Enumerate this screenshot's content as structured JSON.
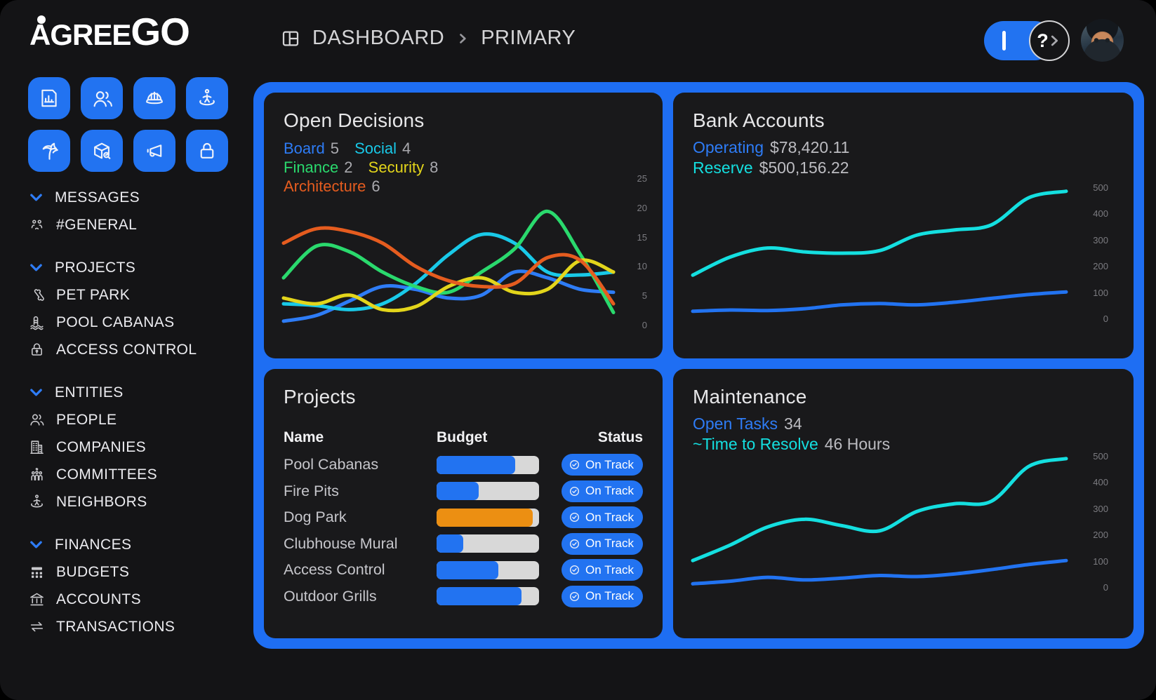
{
  "header": {
    "breadcrumb": {
      "icon": "dashboard-layout-icon",
      "items": [
        "DASHBOARD",
        "PRIMARY"
      ]
    },
    "help_glyph": "?"
  },
  "sidebar": {
    "logo_text": "AGREE",
    "logo_text_accent": "GO",
    "quick_buttons": [
      {
        "icon": "report-chart-icon"
      },
      {
        "icon": "users-icon"
      },
      {
        "icon": "hard-hat-icon"
      },
      {
        "icon": "neighbor-swirl-icon"
      },
      {
        "icon": "palm-tree-icon"
      },
      {
        "icon": "package-search-icon"
      },
      {
        "icon": "megaphone-icon"
      },
      {
        "icon": "lock-icon"
      }
    ],
    "sections": [
      {
        "label": "MESSAGES",
        "items": [
          {
            "icon": "people-group-icon",
            "label": "#GENERAL"
          }
        ]
      },
      {
        "label": "PROJECTS",
        "items": [
          {
            "icon": "bone-icon",
            "label": "PET PARK"
          },
          {
            "icon": "pool-ladder-icon",
            "label": "POOL CABANAS"
          },
          {
            "icon": "padlock-keyhole-icon",
            "label": "ACCESS CONTROL"
          }
        ]
      },
      {
        "label": "ENTITIES",
        "items": [
          {
            "icon": "people-icon",
            "label": "PEOPLE"
          },
          {
            "icon": "building-icon",
            "label": "COMPANIES"
          },
          {
            "icon": "committee-icon",
            "label": "COMMITTEES"
          },
          {
            "icon": "neighbor-swirl-icon",
            "label": "NEIGHBORS"
          }
        ]
      },
      {
        "label": "FINANCES",
        "items": [
          {
            "icon": "budget-grid-icon",
            "label": "BUDGETS"
          },
          {
            "icon": "bank-icon",
            "label": "ACCOUNTS"
          },
          {
            "icon": "transfer-arrows-icon",
            "label": "TRANSACTIONS"
          }
        ]
      }
    ]
  },
  "cards": {
    "open_decisions": {
      "title": "Open Decisions",
      "legend": [
        {
          "label": "Board",
          "value": "5",
          "color": "#2e7cf6"
        },
        {
          "label": "Social",
          "value": "4",
          "color": "#19c9e8"
        },
        {
          "label": "Finance",
          "value": "2",
          "color": "#2ad96d"
        },
        {
          "label": "Security",
          "value": "8",
          "color": "#e3d51b"
        },
        {
          "label": "Architecture",
          "value": "6",
          "color": "#e55c1f"
        }
      ]
    },
    "bank_accounts": {
      "title": "Bank Accounts",
      "stats": [
        {
          "label": "Operating",
          "value": "$78,420.11",
          "color": "#2e7cf6"
        },
        {
          "label": "Reserve",
          "value": "$500,156.22",
          "color": "#14dfe0"
        }
      ]
    },
    "projects": {
      "title": "Projects",
      "columns": [
        "Name",
        "Budget",
        "Status"
      ],
      "rows": [
        {
          "name": "Pool Cabanas",
          "progress": 77,
          "bar_color": "#2273f1",
          "status": "On Track"
        },
        {
          "name": "Fire Pits",
          "progress": 41,
          "bar_color": "#2273f1",
          "status": "On Track"
        },
        {
          "name": "Dog Park",
          "progress": 94,
          "bar_color": "#ec8f12",
          "status": "On Track"
        },
        {
          "name": "Clubhouse Mural",
          "progress": 26,
          "bar_color": "#2273f1",
          "status": "On Track"
        },
        {
          "name": "Access Control",
          "progress": 60,
          "bar_color": "#2273f1",
          "status": "On Track"
        },
        {
          "name": "Outdoor Grills",
          "progress": 83,
          "bar_color": "#2273f1",
          "status": "On Track"
        }
      ]
    },
    "maintenance": {
      "title": "Maintenance",
      "stats": [
        {
          "label": "Open Tasks",
          "value": "34",
          "color": "#2e7cf6"
        },
        {
          "label": "~Time to Resolve",
          "value": "46 Hours",
          "color": "#14dfe0"
        }
      ]
    }
  },
  "colors": {
    "accent_blue": "#2273f1",
    "container_blue": "#1e6ef3",
    "bar_track": "#d8d8d8",
    "bar_orange": "#ec8f12"
  },
  "chart_data": [
    {
      "id": "open_decisions",
      "type": "line",
      "title": "Open Decisions",
      "ylim": [
        0,
        25
      ],
      "y_ticks": [
        25,
        20,
        15,
        10,
        5,
        0
      ],
      "grid": false,
      "legend_position": "top-left",
      "series": [
        {
          "name": "Board",
          "color": "#2e7cf6",
          "values": [
            0.5,
            1.5,
            4,
            6.5,
            6,
            4.5,
            5,
            9,
            8,
            6,
            5.5
          ]
        },
        {
          "name": "Social",
          "color": "#19c9e8",
          "values": [
            3.5,
            3.2,
            2.5,
            3.5,
            7,
            12,
            15.5,
            14,
            9,
            8.5,
            9
          ]
        },
        {
          "name": "Finance",
          "color": "#2ad96d",
          "values": [
            8,
            13.5,
            12.5,
            9,
            6.5,
            5.5,
            9,
            13,
            19.5,
            12,
            2
          ]
        },
        {
          "name": "Security",
          "color": "#e3d51b",
          "values": [
            4.5,
            3.5,
            5,
            2.5,
            3,
            6.5,
            8,
            5.5,
            6,
            11,
            9
          ]
        },
        {
          "name": "Architecture",
          "color": "#e55c1f",
          "values": [
            14,
            16.5,
            16,
            14,
            10,
            7.5,
            6.5,
            7,
            11.5,
            11,
            3.5
          ]
        }
      ]
    },
    {
      "id": "bank_accounts",
      "type": "line",
      "title": "Bank Accounts",
      "ylim": [
        0,
        500
      ],
      "y_ticks": [
        500,
        400,
        300,
        200,
        100,
        0
      ],
      "grid": false,
      "series": [
        {
          "name": "Reserve",
          "color": "#14dfe0",
          "values": [
            165,
            235,
            270,
            255,
            250,
            260,
            320,
            340,
            360,
            465,
            490
          ]
        },
        {
          "name": "Operating",
          "color": "#2273f1",
          "values": [
            25,
            30,
            28,
            35,
            50,
            55,
            50,
            60,
            75,
            90,
            100
          ]
        }
      ]
    },
    {
      "id": "maintenance",
      "type": "line",
      "title": "Maintenance",
      "ylim": [
        0,
        500
      ],
      "y_ticks": [
        500,
        400,
        300,
        200,
        100,
        0
      ],
      "grid": false,
      "series": [
        {
          "name": "Time to Resolve",
          "color": "#14dfe0",
          "values": [
            100,
            160,
            230,
            260,
            235,
            215,
            290,
            320,
            330,
            465,
            495
          ]
        },
        {
          "name": "Open Tasks",
          "color": "#2273f1",
          "values": [
            10,
            20,
            35,
            25,
            32,
            42,
            38,
            48,
            65,
            85,
            100
          ]
        }
      ]
    }
  ]
}
